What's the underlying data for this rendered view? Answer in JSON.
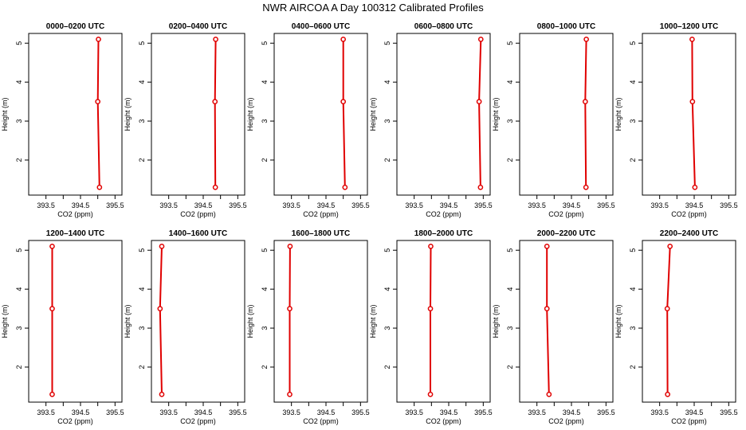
{
  "title": "NWR AIRCOA A  Day 100312  Calibrated Profiles",
  "colors": {
    "series": "#e00000",
    "axis": "#000000"
  },
  "chart_data": {
    "type": "line",
    "xlabel": "CO2 (ppm)",
    "ylabel": "Height (m)",
    "xlim": [
      393.0,
      395.7
    ],
    "ylim": [
      1.1,
      5.25
    ],
    "xticks": [
      393.5,
      394.5,
      395.5
    ],
    "xticks_minor": [
      394.0,
      395.0
    ],
    "xtick_labels": [
      "393.5",
      "394.5",
      "395.5"
    ],
    "yticks": [
      2,
      3,
      4,
      5
    ],
    "ytick_labels": [
      "2",
      "3",
      "4",
      "5"
    ],
    "grid": false,
    "panels": [
      {
        "title": "0000–0200 UTC",
        "x": [
          395.05,
          395.0,
          395.02
        ],
        "y": [
          1.3,
          3.5,
          5.1
        ]
      },
      {
        "title": "0200–0400 UTC",
        "x": [
          394.85,
          394.84,
          394.86
        ],
        "y": [
          1.3,
          3.5,
          5.1
        ]
      },
      {
        "title": "0400–0600 UTC",
        "x": [
          395.05,
          395.0,
          395.0
        ],
        "y": [
          1.3,
          3.5,
          5.1
        ]
      },
      {
        "title": "0600–0800 UTC",
        "x": [
          395.42,
          395.38,
          395.43
        ],
        "y": [
          1.3,
          3.5,
          5.1
        ]
      },
      {
        "title": "0800–1000 UTC",
        "x": [
          394.92,
          394.9,
          394.93
        ],
        "y": [
          1.3,
          3.5,
          5.1
        ]
      },
      {
        "title": "1000–1200 UTC",
        "x": [
          394.52,
          394.45,
          394.44
        ],
        "y": [
          1.3,
          3.5,
          5.1
        ]
      },
      {
        "title": "1200–1400 UTC",
        "x": [
          393.68,
          393.68,
          393.68
        ],
        "y": [
          1.3,
          3.5,
          5.1
        ]
      },
      {
        "title": "1400–1600 UTC",
        "x": [
          393.3,
          393.25,
          393.3
        ],
        "y": [
          1.3,
          3.5,
          5.1
        ]
      },
      {
        "title": "1600–1800 UTC",
        "x": [
          393.45,
          393.45,
          393.46
        ],
        "y": [
          1.3,
          3.5,
          5.1
        ]
      },
      {
        "title": "1800–2000 UTC",
        "x": [
          393.97,
          393.97,
          393.98
        ],
        "y": [
          1.3,
          3.5,
          5.1
        ]
      },
      {
        "title": "2000–2200 UTC",
        "x": [
          393.85,
          393.79,
          393.79
        ],
        "y": [
          1.3,
          3.5,
          5.1
        ]
      },
      {
        "title": "2200–2400 UTC",
        "x": [
          393.73,
          393.72,
          393.8
        ],
        "y": [
          1.3,
          3.5,
          5.1
        ]
      }
    ]
  }
}
